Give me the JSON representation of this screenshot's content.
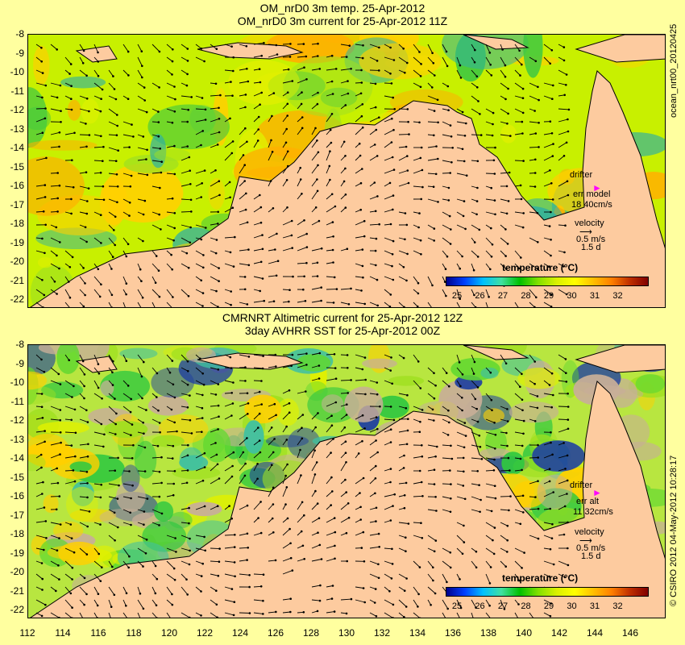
{
  "top_panel": {
    "title_line1": "OM_nrD0 3m temp. 25-Apr-2012",
    "title_line2": "OM_nrD0 3m current for 25-Apr-2012 11Z",
    "drifter_label": "drifter",
    "err_label": "err model",
    "err_value": "18 40cm/s",
    "velocity_label": "velocity",
    "velocity_value": "0.5 m/s",
    "velocity_period": "1.5 d",
    "colorbar_title": "temperature (°C)"
  },
  "bottom_panel": {
    "title_line1": "CMRNRT Altimetric current for 25-Apr-2012 12Z",
    "title_line2": "3day AVHRR SST for 25-Apr-2012 00Z",
    "drifter_label": "drifter",
    "err_label": "err alt",
    "err_value": "11 32cm/s",
    "velocity_label": "velocity",
    "velocity_value": "0.5 m/s",
    "velocity_period": "1.5 d",
    "colorbar_title": "temperature (°C)"
  },
  "right_label_top": "ocean_nrt00_20120425",
  "right_label_bottom": "© CSIRO 2012   04-May-2012 10:28:17",
  "y_ticks": [
    "-8",
    "-9",
    "-10",
    "-11",
    "-12",
    "-13",
    "-14",
    "-15",
    "-16",
    "-17",
    "-18",
    "-19",
    "-20",
    "-21",
    "-22"
  ],
  "x_ticks": [
    "112",
    "114",
    "116",
    "118",
    "120",
    "122",
    "124",
    "126",
    "128",
    "130",
    "132",
    "134",
    "136",
    "138",
    "140",
    "142",
    "144",
    "146"
  ],
  "colorbar_ticks": [
    "25",
    "26",
    "27",
    "28",
    "29",
    "30",
    "31",
    "32"
  ],
  "colors": {
    "background": "#ffff9f",
    "land": "#fdcb9f",
    "cloud_gap": "#c8ae98",
    "drifter": "#ff00ff"
  }
}
